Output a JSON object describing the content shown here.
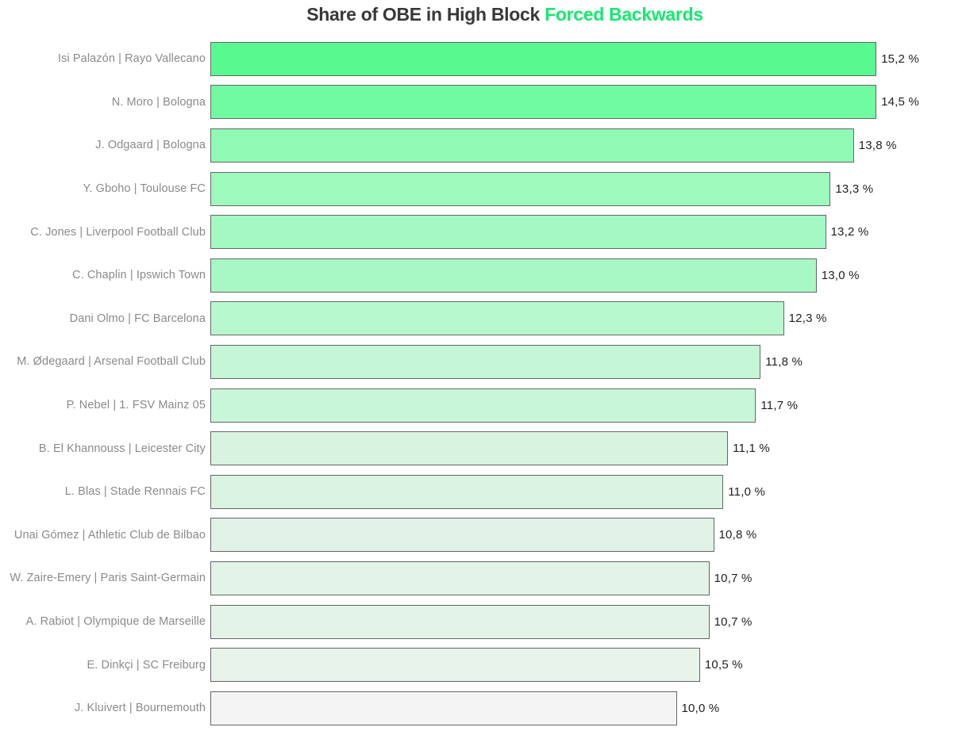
{
  "title": {
    "part1": "Share of OBE in High Block ",
    "part2": "Forced Backwards",
    "part1_color": "#383838",
    "part2_color": "#16e96e"
  },
  "chart_data": {
    "type": "bar",
    "orientation": "horizontal",
    "title": "Share of OBE in High Block Forced Backwards",
    "xlabel": "",
    "ylabel": "",
    "xlim": [
      0,
      15.2
    ],
    "grid": false,
    "legend": false,
    "value_suffix": " %",
    "decimal_separator": ",",
    "bar_border_color": "#666666",
    "label_color": "#8a8a8a",
    "value_color": "#1f1f1f",
    "rows": [
      {
        "label": "Isi Palazón | Rayo Vallecano",
        "value": 15.2,
        "display": "15,2 %",
        "color": "#58fa90"
      },
      {
        "label": "N. Moro | Bologna",
        "value": 14.5,
        "display": "14,5 %",
        "color": "#70fba2"
      },
      {
        "label": "J. Odgaard | Bologna",
        "value": 13.8,
        "display": "13,8 %",
        "color": "#8ffab3"
      },
      {
        "label": "Y. Gboho | Toulouse FC",
        "value": 13.3,
        "display": "13,3 %",
        "color": "#9df9bc"
      },
      {
        "label": "C. Jones | Liverpool Football Club",
        "value": 13.2,
        "display": "13,2 %",
        "color": "#a3f9c1"
      },
      {
        "label": "C. Chaplin | Ipswich Town",
        "value": 13.0,
        "display": "13,0 %",
        "color": "#a7f8c4"
      },
      {
        "label": "Dani Olmo | FC Barcelona",
        "value": 12.3,
        "display": "12,3 %",
        "color": "#b7f8ce"
      },
      {
        "label": "M. Ødegaard | Arsenal Football Club",
        "value": 11.8,
        "display": "11,8 %",
        "color": "#c5f6d6"
      },
      {
        "label": "P. Nebel | 1. FSV Mainz 05",
        "value": 11.7,
        "display": "11,7 %",
        "color": "#c8f6d8"
      },
      {
        "label": "B. El Khannouss | Leicester City",
        "value": 11.1,
        "display": "11,1 %",
        "color": "#d9f3e1"
      },
      {
        "label": "L. Blas | Stade Rennais FC",
        "value": 11.0,
        "display": "11,0 %",
        "color": "#dbf3e2"
      },
      {
        "label": "Unai Gómez | Athletic Club de Bilbao",
        "value": 10.8,
        "display": "10,8 %",
        "color": "#e0f2e6"
      },
      {
        "label": "W. Zaire-Emery | Paris Saint-Germain",
        "value": 10.7,
        "display": "10,7 %",
        "color": "#e2f3e7"
      },
      {
        "label": "A. Rabiot | Olympique de Marseille",
        "value": 10.7,
        "display": "10,7 %",
        "color": "#e3f3e8"
      },
      {
        "label": "E. Dinkçi | SC Freiburg",
        "value": 10.5,
        "display": "10,5 %",
        "color": "#e8f4ea"
      },
      {
        "label": "J. Kluivert | Bournemouth",
        "value": 10.0,
        "display": "10,0 %",
        "color": "#f4f4f4"
      }
    ]
  }
}
